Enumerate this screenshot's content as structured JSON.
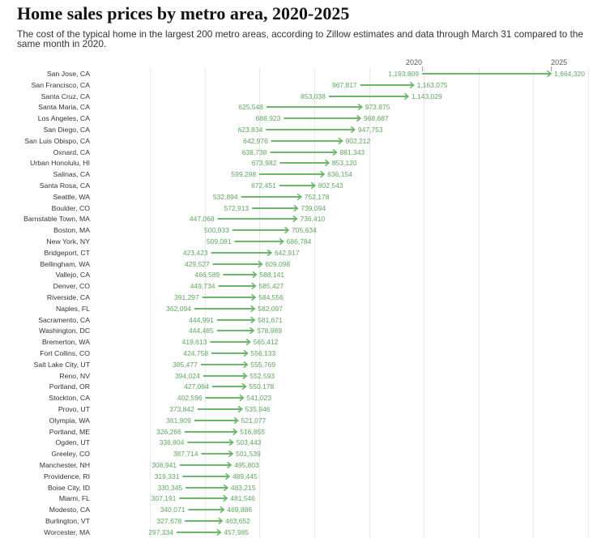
{
  "chart_data": {
    "type": "bar",
    "orientation": "horizontal",
    "title": "Home sales prices by metro area, 2020-2025",
    "subtitle": "The cost of the typical home in the largest 200 metro areas, according to Zillow estimates and data through March 31 compared to the same month in 2020.",
    "xlabel": "",
    "ylabel": "",
    "xlim": [
      0,
      1800000
    ],
    "grid": true,
    "legend": "top",
    "categories": [
      "San Jose, CA",
      "San Francisco, CA",
      "Santa Cruz, CA",
      "Santa Maria, CA",
      "Los Angeles, CA",
      "San Diego, CA",
      "San Luis Obispo, CA",
      "Oxnard, CA",
      "Urban Honolulu, HI",
      "Salinas, CA",
      "Santa Rosa, CA",
      "Seattle, WA",
      "Boulder, CO",
      "Barnstable Town, MA",
      "Boston, MA",
      "New York, NY",
      "Bridgeport, CT",
      "Bellingham, WA",
      "Vallejo, CA",
      "Denver, CO",
      "Riverside, CA",
      "Naples, FL",
      "Sacramento, CA",
      "Washington, DC",
      "Bremerton, WA",
      "Fort Collins, CO",
      "Salt Lake City, UT",
      "Reno, NV",
      "Portland, OR",
      "Stockton, CA",
      "Provo, UT",
      "Olympia, WA",
      "Portland, ME",
      "Ogden, UT",
      "Greeley, CO",
      "Manchester, NH",
      "Providence, RI",
      "Boise City, ID",
      "Miami, FL",
      "Modesto, CA",
      "Burlington, VT",
      "Worcester, MA"
    ],
    "series": [
      {
        "name": "2020",
        "values": [
          1193809,
          967817,
          853038,
          625548,
          688923,
          623834,
          642976,
          638738,
          673982,
          599298,
          672451,
          532894,
          572913,
          447068,
          500933,
          509081,
          423423,
          429527,
          466589,
          449734,
          391297,
          362094,
          444991,
          444485,
          419613,
          424758,
          385477,
          394024,
          427084,
          402596,
          373842,
          361909,
          326266,
          336804,
          387714,
          308941,
          319331,
          330345,
          307191,
          340071,
          327678,
          297334
        ]
      },
      {
        "name": "2025",
        "values": [
          1664320,
          1163075,
          1143029,
          973875,
          968687,
          947753,
          902212,
          881343,
          853120,
          836154,
          802543,
          752178,
          739094,
          736410,
          705634,
          686784,
          642917,
          609098,
          588141,
          585427,
          584556,
          582097,
          581671,
          578989,
          565412,
          556133,
          555769,
          552593,
          550178,
          541023,
          535946,
          521077,
          516855,
          503443,
          501539,
          495803,
          489445,
          483215,
          481546,
          469886,
          463652,
          457985
        ]
      }
    ],
    "colors": {
      "arrow": "#6db66d",
      "value_label": "#5ea95e",
      "category_label": "#333333",
      "series_label": "#555555",
      "grid": "#e8e8e8"
    }
  }
}
